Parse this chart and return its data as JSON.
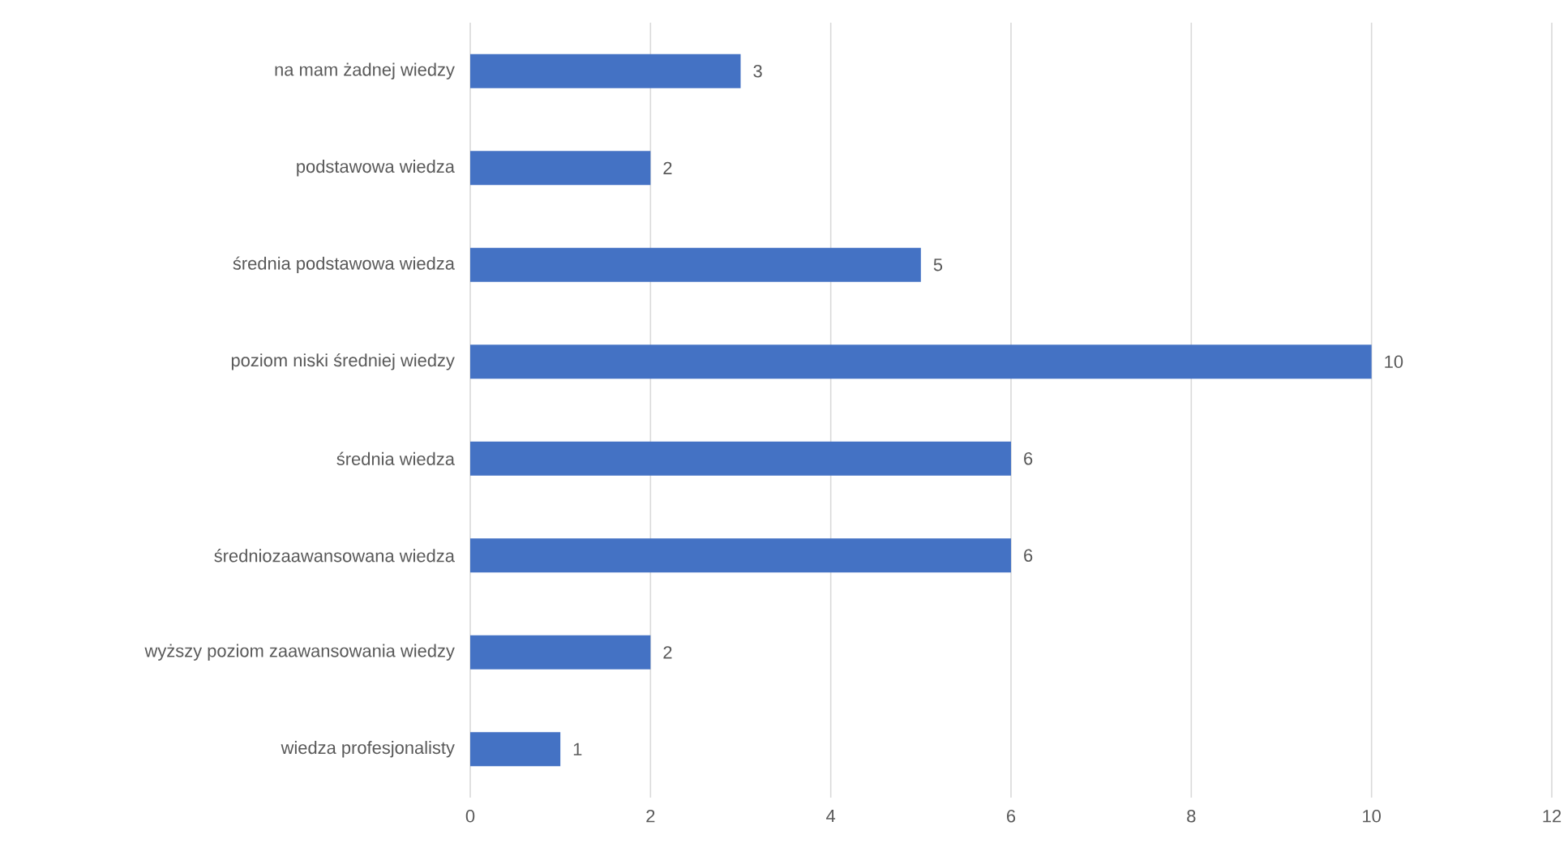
{
  "chart_data": {
    "type": "bar",
    "orientation": "horizontal",
    "categories": [
      "na mam żadnej wiedzy",
      "podstawowa wiedza",
      "średnia podstawowa wiedza",
      "poziom niski średniej wiedzy",
      "średnia wiedza",
      "średniozaawansowana wiedza",
      "wyższy poziom zaawansowania wiedzy",
      "wiedza profesjonalisty"
    ],
    "values": [
      3,
      2,
      5,
      10,
      6,
      6,
      2,
      1
    ],
    "color": "#4472c4",
    "xlim": [
      0,
      12
    ],
    "xticks": [
      0,
      2,
      4,
      6,
      8,
      10,
      12
    ],
    "grid": "x",
    "data_labels": true
  }
}
